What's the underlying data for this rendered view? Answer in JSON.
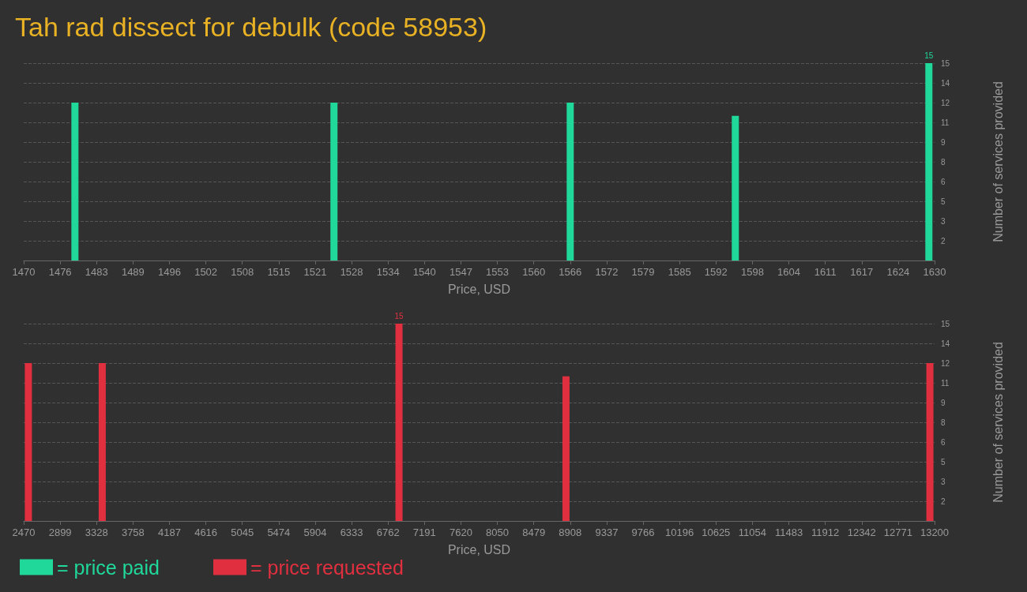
{
  "chart_data": [
    {
      "type": "bar",
      "title": "Tah rad dissect for debulk (code 58953)",
      "xlabel": "Price, USD",
      "ylabel": "Number of services provided",
      "x": [
        1479,
        1524.5,
        1566,
        1595,
        1629
      ],
      "series": [
        {
          "name": "= price paid",
          "color": "#1fd89a",
          "values": [
            12,
            12,
            12,
            11,
            15
          ],
          "value_labels": [
            null,
            null,
            null,
            null,
            "15"
          ]
        }
      ],
      "xlim": [
        1470,
        1630
      ],
      "xticks": [
        1470,
        {
          "value": 1476.4,
          "label": "1476"
        },
        {
          "value": 1482.8,
          "label": "1483"
        },
        {
          "value": 1489.2,
          "label": "1489"
        },
        {
          "value": 1495.6,
          "label": "1496"
        },
        1502,
        {
          "value": 1508.4,
          "label": "1508"
        },
        {
          "value": 1514.8,
          "label": "1515"
        },
        {
          "value": 1521.2,
          "label": "1521"
        },
        {
          "value": 1527.6,
          "label": "1528"
        },
        1534,
        {
          "value": 1540.4,
          "label": "1540"
        },
        {
          "value": 1546.8,
          "label": "1547"
        },
        {
          "value": 1553.2,
          "label": "1553"
        },
        {
          "value": 1559.6,
          "label": "1560"
        },
        1566,
        {
          "value": 1572.4,
          "label": "1572"
        },
        {
          "value": 1578.8,
          "label": "1579"
        },
        {
          "value": 1585.2,
          "label": "1585"
        },
        {
          "value": 1591.6,
          "label": "1592"
        },
        1598,
        {
          "value": 1604.4,
          "label": "1604"
        },
        {
          "value": 1610.8,
          "label": "1611"
        },
        {
          "value": 1617.2,
          "label": "1617"
        },
        {
          "value": 1623.6,
          "label": "1624"
        },
        1630
      ],
      "ylim": [
        0,
        15
      ],
      "yticks": [
        {
          "value": 1.5,
          "label": "2"
        },
        3,
        {
          "value": 4.5,
          "label": "5"
        },
        6,
        {
          "value": 7.5,
          "label": "8"
        },
        9,
        {
          "value": 10.5,
          "label": "11"
        },
        12,
        {
          "value": 13.5,
          "label": "14"
        },
        15
      ],
      "grid": "y",
      "legend": "bottom left"
    },
    {
      "type": "bar",
      "xlabel": "Price, USD",
      "ylabel": "Number of services provided",
      "x": [
        2525,
        3395,
        6891,
        8858,
        13145
      ],
      "series": [
        {
          "name": "= price requested",
          "color": "#e0303f",
          "values": [
            12,
            12,
            15,
            11,
            12
          ],
          "value_labels": [
            null,
            null,
            "15",
            null,
            null
          ]
        }
      ],
      "xlim": [
        2470,
        13200
      ],
      "xticks": [
        2470,
        {
          "value": 2899.2,
          "label": "2899"
        },
        {
          "value": 3328.4,
          "label": "3328"
        },
        {
          "value": 3757.6,
          "label": "3758"
        },
        {
          "value": 4186.8,
          "label": "4187"
        },
        4616,
        {
          "value": 5045.2,
          "label": "5045"
        },
        {
          "value": 5474.4,
          "label": "5474"
        },
        {
          "value": 5903.6,
          "label": "5904"
        },
        {
          "value": 6332.8,
          "label": "6333"
        },
        6762,
        {
          "value": 7191.2,
          "label": "7191"
        },
        {
          "value": 7620.4,
          "label": "7620"
        },
        {
          "value": 8049.6,
          "label": "8050"
        },
        {
          "value": 8478.8,
          "label": "8479"
        },
        8908,
        {
          "value": 9337.2,
          "label": "9337"
        },
        {
          "value": 9766.4,
          "label": "9766"
        },
        {
          "value": 10195.6,
          "label": "10196"
        },
        {
          "value": 10624.8,
          "label": "10625"
        },
        11054,
        {
          "value": 11483.2,
          "label": "11483"
        },
        {
          "value": 11912.4,
          "label": "11912"
        },
        {
          "value": 12341.6,
          "label": "12342"
        },
        {
          "value": 12770.8,
          "label": "12771"
        },
        13200
      ],
      "ylim": [
        0,
        15
      ],
      "yticks": [
        {
          "value": 1.5,
          "label": "2"
        },
        3,
        {
          "value": 4.5,
          "label": "5"
        },
        6,
        {
          "value": 7.5,
          "label": "8"
        },
        9,
        {
          "value": 10.5,
          "label": "11"
        },
        12,
        {
          "value": 13.5,
          "label": "14"
        },
        15
      ],
      "grid": "y",
      "legend": "bottom left"
    }
  ]
}
